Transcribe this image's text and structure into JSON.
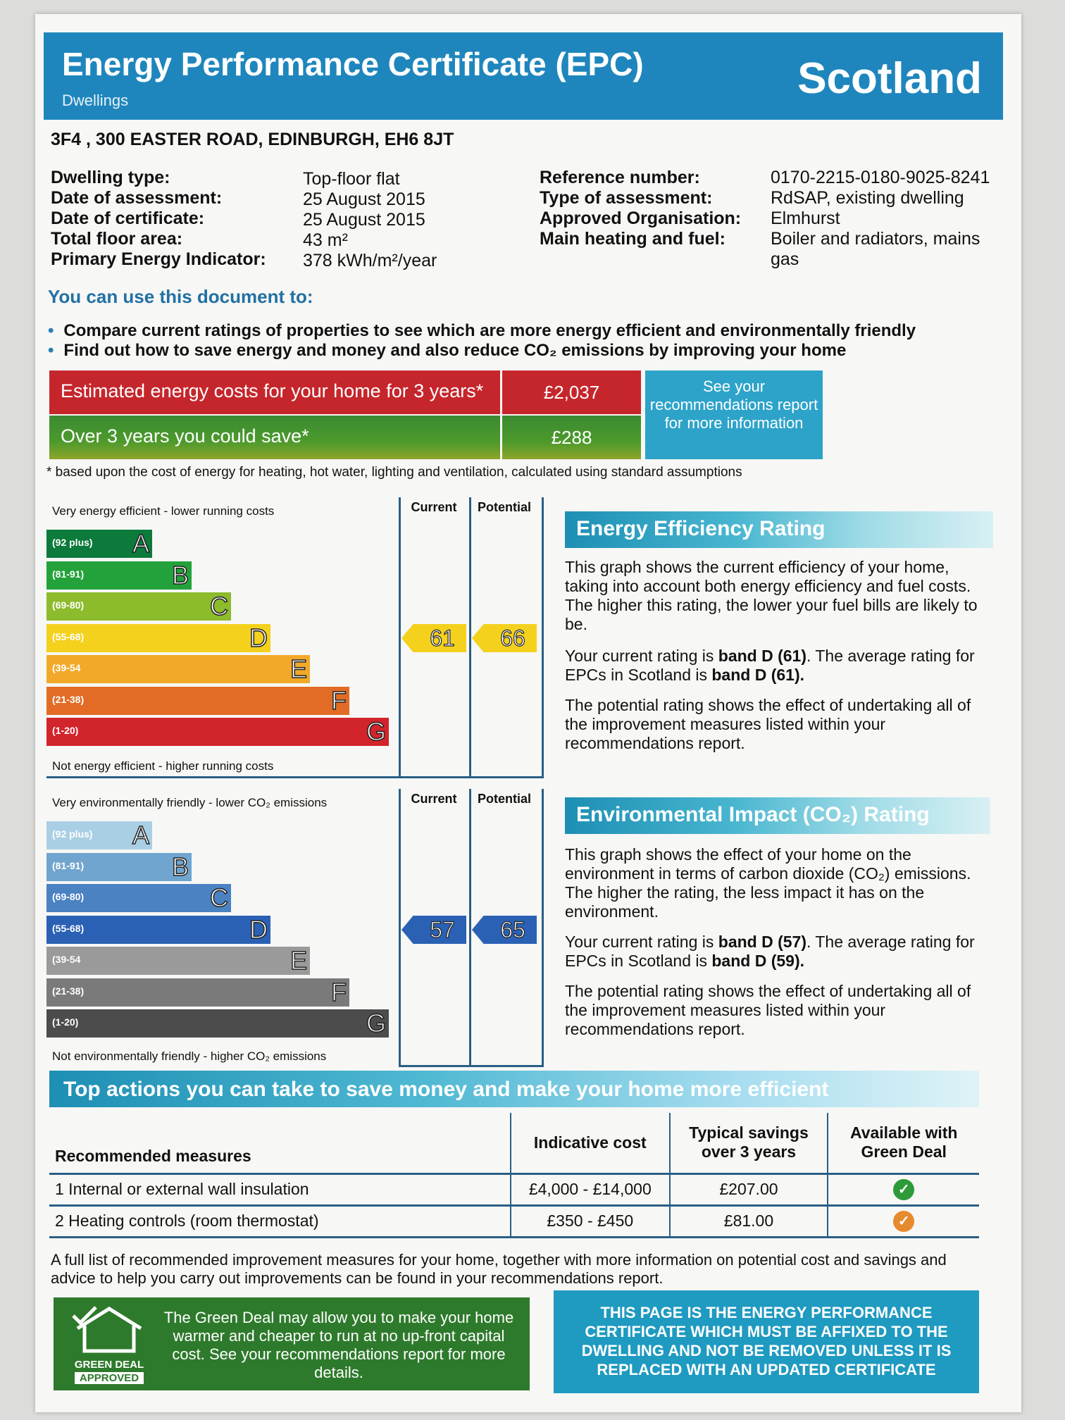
{
  "header": {
    "title": "Energy Performance Certificate (EPC)",
    "subtitle": "Dwellings",
    "country": "Scotland"
  },
  "address": "3F4 , 300 EASTER ROAD, EDINBURGH, EH6 8JT",
  "details_left": [
    {
      "key": "Dwelling type:",
      "value": "Top-floor flat"
    },
    {
      "key": "Date of assessment:",
      "value": "25 August 2015"
    },
    {
      "key": "Date of certificate:",
      "value": "25 August 2015"
    },
    {
      "key": "Total floor area:",
      "value": "43 m²"
    },
    {
      "key": "Primary Energy Indicator:",
      "value": "378 kWh/m²/year"
    }
  ],
  "details_right": [
    {
      "key": "Reference number:",
      "value": "0170-2215-0180-9025-8241"
    },
    {
      "key": "Type of assessment:",
      "value": "RdSAP, existing dwelling"
    },
    {
      "key": "Approved Organisation:",
      "value": "Elmhurst"
    },
    {
      "key": "Main heating and fuel:",
      "value": "Boiler and radiators, mains",
      "value2": "gas"
    }
  ],
  "use": {
    "heading": "You can use this document to:",
    "bullets": [
      "Compare current ratings of properties to see which are more energy efficient and environmentally friendly",
      "Find out how to save energy and money and also reduce CO₂ emissions by improving your home"
    ]
  },
  "costs": {
    "estimated_label": "Estimated energy costs for your home for 3 years*",
    "estimated_value": "£2,037",
    "save_label": "Over 3 years you could save*",
    "save_value": "£288",
    "see_box": "See your recommendations report for more information",
    "footnote": "* based upon the cost of energy for heating, hot water, lighting and ventilation, calculated using standard assumptions"
  },
  "bands": [
    {
      "letter": "A",
      "range": "(92 plus)"
    },
    {
      "letter": "B",
      "range": "(81-91)"
    },
    {
      "letter": "C",
      "range": "(69-80)"
    },
    {
      "letter": "D",
      "range": "(55-68)"
    },
    {
      "letter": "E",
      "range": "(39-54"
    },
    {
      "letter": "F",
      "range": "(21-38)"
    },
    {
      "letter": "G",
      "range": "(1-20)"
    }
  ],
  "efficiency_chart": {
    "top_label": "Very energy efficient - lower running costs",
    "bottom_label": "Not energy efficient - higher running costs",
    "col_current": "Current",
    "col_potential": "Potential",
    "current": 61,
    "potential": 66,
    "colors": [
      "#0b7a3a",
      "#23a23b",
      "#8cbb2b",
      "#f4d11c",
      "#f2a92a",
      "#e26c26",
      "#d2242b"
    ]
  },
  "environment_chart": {
    "top_label": "Very environmentally friendly - lower CO₂ emissions",
    "bottom_label": "Not environmentally friendly - higher CO₂ emissions",
    "col_current": "Current",
    "col_potential": "Potential",
    "current": 57,
    "potential": 65,
    "colors": [
      "#a9cfe4",
      "#6fa5cf",
      "#4a82c2",
      "#2a61b4",
      "#9a9a9a",
      "#7a7a7a",
      "#4c4c4c"
    ]
  },
  "efficiency_text": {
    "title": "Energy Efficiency Rating",
    "p1": "This graph shows the current efficiency of your home, taking into account both energy efficiency and fuel costs. The higher this rating, the lower your fuel bills are likely to be.",
    "p2a": "Your current rating is ",
    "p2b": "band D (61)",
    "p2c": ". The average rating for EPCs in Scotland is ",
    "p2d": "band D (61).",
    "p3": "The potential rating shows the effect of undertaking all of the improvement measures listed within your recommendations report."
  },
  "environment_text": {
    "title": "Environmental Impact (CO₂) Rating",
    "p1": "This graph shows the effect of your home on the environment in terms of carbon dioxide (CO₂) emissions. The higher the rating, the less impact it has on the environment.",
    "p2a": "Your current rating is ",
    "p2b": "band D (57)",
    "p2c": ". The average rating for EPCs in Scotland is ",
    "p2d": "band D (59).",
    "p3": "The potential rating shows the effect of undertaking all of the improvement measures listed within your recommendations report."
  },
  "actions": {
    "title": "Top actions you can take to save money and make your home more efficient",
    "headers": [
      "Recommended measures",
      "Indicative cost",
      "Typical savings over 3 years",
      "Available with Green Deal"
    ],
    "rows": [
      {
        "measure": "1 Internal or external wall insulation",
        "cost": "£4,000 - £14,000",
        "saving": "£207.00",
        "check_color": "#2e9a3a"
      },
      {
        "measure": "2 Heating controls (room thermostat)",
        "cost": "£350 - £450",
        "saving": "£81.00",
        "check_color": "#e68a2e"
      }
    ],
    "full_list": "A full list of recommended improvement measures for your home, together with more information on potential cost and savings and advice to help you carry out improvements can be found in your recommendations report."
  },
  "green_deal": {
    "logo_line1": "GREEN DEAL",
    "logo_line2": "APPROVED",
    "text": "The Green Deal may allow you to make your home warmer and cheaper to run at no up-front capital cost. See your recommendations report for more details."
  },
  "affix_notice": "THIS PAGE IS THE ENERGY PERFORMANCE CERTIFICATE WHICH MUST BE AFFIXED TO THE DWELLING AND NOT BE REMOVED UNLESS IT IS REPLACED WITH AN UPDATED CERTIFICATE"
}
